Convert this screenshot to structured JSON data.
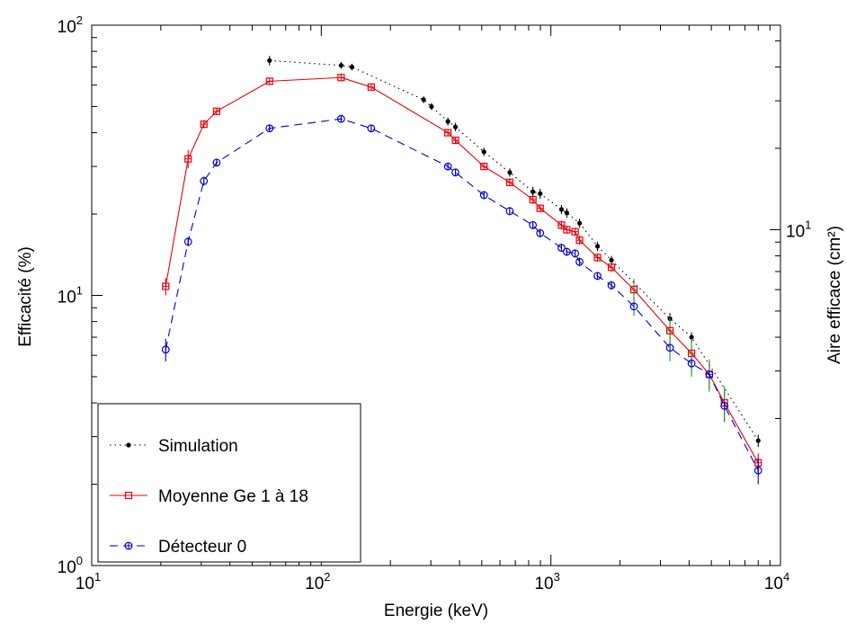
{
  "chart_data": {
    "type": "line",
    "x_scale": "log",
    "y_scale": "log",
    "xlim": [
      10,
      10000
    ],
    "ylim": [
      1,
      100
    ],
    "xlabel": "Energie (keV)",
    "ylabel": "Efficacité (%)",
    "y2label": "Aire efficace (cm²)",
    "x_ticks": [
      {
        "value": 10,
        "base": "10",
        "exp": "1"
      },
      {
        "value": 100,
        "base": "10",
        "exp": "2"
      },
      {
        "value": 1000,
        "base": "10",
        "exp": "3"
      },
      {
        "value": 10000,
        "base": "10",
        "exp": "4"
      }
    ],
    "y_ticks": [
      {
        "value": 1,
        "base": "10",
        "exp": "0"
      },
      {
        "value": 10,
        "base": "10",
        "exp": "1"
      },
      {
        "value": 100,
        "base": "10",
        "exp": "2"
      }
    ],
    "y2_ticks": [
      {
        "value": 17.5,
        "base": "10",
        "exp": "1"
      }
    ],
    "grid": false,
    "legend_position": "bottom-left",
    "series": [
      {
        "name": "Simulation",
        "style": "dotted",
        "marker": "dot",
        "color": "#000000",
        "points": [
          [
            59.5,
            74,
            3
          ],
          [
            122,
            71,
            2
          ],
          [
            136,
            70,
            2
          ],
          [
            279,
            53,
            1.5
          ],
          [
            302,
            50,
            1.5
          ],
          [
            356,
            44,
            1.5
          ],
          [
            384,
            42,
            1.5
          ],
          [
            511,
            34,
            1.2
          ],
          [
            662,
            28.5,
            1
          ],
          [
            835,
            24.2,
            1
          ],
          [
            898,
            23.8,
            1
          ],
          [
            1112,
            20.8,
            0.8
          ],
          [
            1173,
            20.2,
            0.8
          ],
          [
            1333,
            18.5,
            0.7
          ],
          [
            1596,
            15.2,
            0.6
          ],
          [
            1836,
            13.5,
            0.5
          ],
          [
            3300,
            8.2,
            0.4
          ],
          [
            4100,
            7.0,
            0.3
          ],
          [
            8000,
            2.9,
            0.15
          ]
        ]
      },
      {
        "name": "Moyenne Ge 1 à 18",
        "style": "solid",
        "marker": "square",
        "color": "#e8000b",
        "points": [
          [
            21,
            10.8,
            0.8
          ],
          [
            26.3,
            32,
            2.5
          ],
          [
            30.8,
            43,
            1.5
          ],
          [
            35,
            48,
            1.2
          ],
          [
            59.5,
            62,
            1.5
          ],
          [
            122,
            64,
            1.5
          ],
          [
            165,
            59,
            1.5
          ],
          [
            356,
            40,
            1.2
          ],
          [
            384,
            37.5,
            1.2
          ],
          [
            511,
            30,
            1
          ],
          [
            662,
            26.2,
            0.9
          ],
          [
            835,
            22.6,
            0.8
          ],
          [
            898,
            21,
            0.7
          ],
          [
            1112,
            18.2,
            0.7
          ],
          [
            1173,
            17.5,
            0.6
          ],
          [
            1275,
            17.2,
            0.6
          ],
          [
            1333,
            16,
            0.6
          ],
          [
            1596,
            13.8,
            0.5
          ],
          [
            1836,
            12.7,
            0.5
          ],
          [
            2300,
            10.5,
            1
          ],
          [
            3300,
            7.4,
            1
          ],
          [
            4100,
            6.1,
            0.8
          ],
          [
            4900,
            5.1,
            0.7
          ],
          [
            5700,
            4.0,
            0.6
          ],
          [
            8000,
            2.4,
            0.2
          ]
        ]
      },
      {
        "name": "Détecteur 0",
        "style": "dashed",
        "marker": "circle",
        "color": "#0000cc",
        "points": [
          [
            21,
            6.3,
            0.6
          ],
          [
            26.3,
            15.8,
            0.6
          ],
          [
            30.8,
            26.5,
            1
          ],
          [
            35,
            31,
            1
          ],
          [
            59.5,
            41.5,
            1.2
          ],
          [
            122,
            45,
            1.2
          ],
          [
            165,
            41.5,
            1.2
          ],
          [
            356,
            30,
            0.9
          ],
          [
            384,
            28.5,
            0.9
          ],
          [
            511,
            23.5,
            0.8
          ],
          [
            662,
            20.5,
            0.7
          ],
          [
            835,
            18.2,
            0.6
          ],
          [
            898,
            17,
            0.6
          ],
          [
            1112,
            15,
            0.5
          ],
          [
            1173,
            14.5,
            0.5
          ],
          [
            1275,
            14.3,
            0.5
          ],
          [
            1333,
            13.3,
            0.5
          ],
          [
            1596,
            11.8,
            0.4
          ],
          [
            1836,
            10.9,
            0.4
          ],
          [
            2300,
            9.1,
            0.7
          ],
          [
            3300,
            6.4,
            0.7
          ],
          [
            4100,
            5.6,
            0.6
          ],
          [
            4900,
            5.1,
            0.6
          ],
          [
            5700,
            3.9,
            0.5
          ],
          [
            8000,
            2.25,
            0.25
          ]
        ]
      }
    ]
  }
}
